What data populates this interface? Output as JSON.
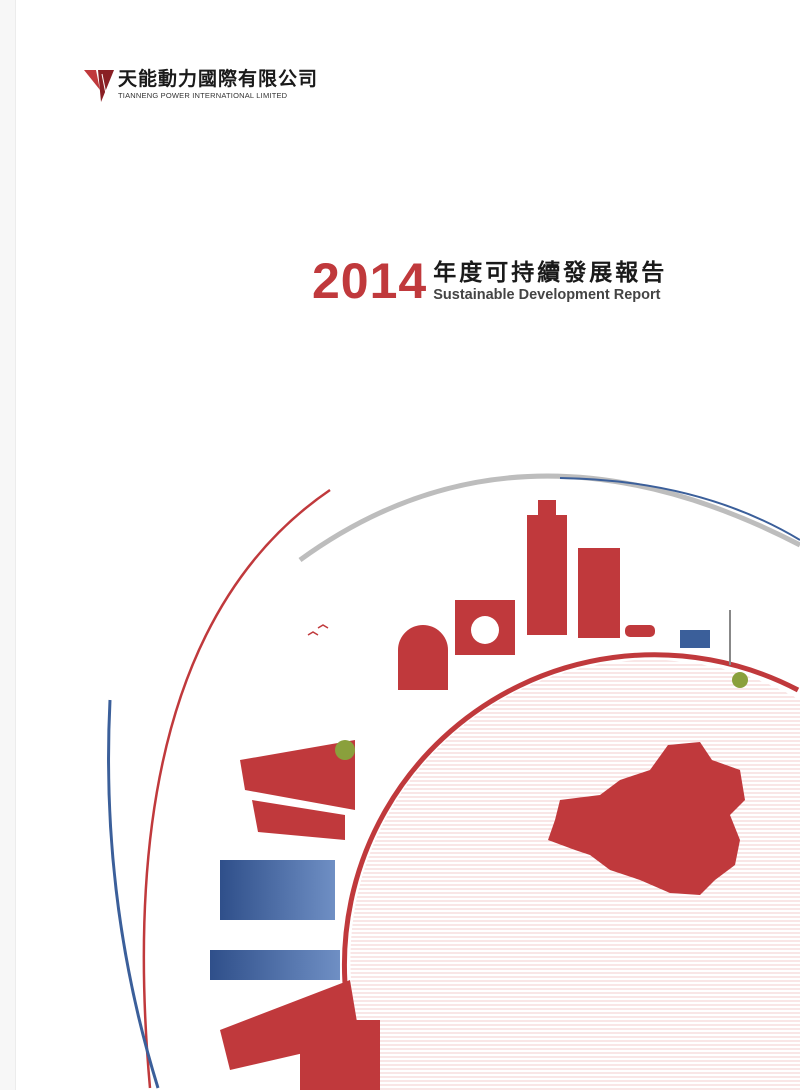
{
  "logo": {
    "name_cn": "天能動力國際有限公司",
    "name_en": "TIANNENG POWER INTERNATIONAL LIMITED"
  },
  "title": {
    "year": "2014",
    "cn": "年度可持續發展報告",
    "en": "Sustainable Development Report"
  },
  "colors": {
    "accent_red": "#c0393c",
    "blue": "#3b5f9a",
    "grey": "#b5b5b5"
  }
}
